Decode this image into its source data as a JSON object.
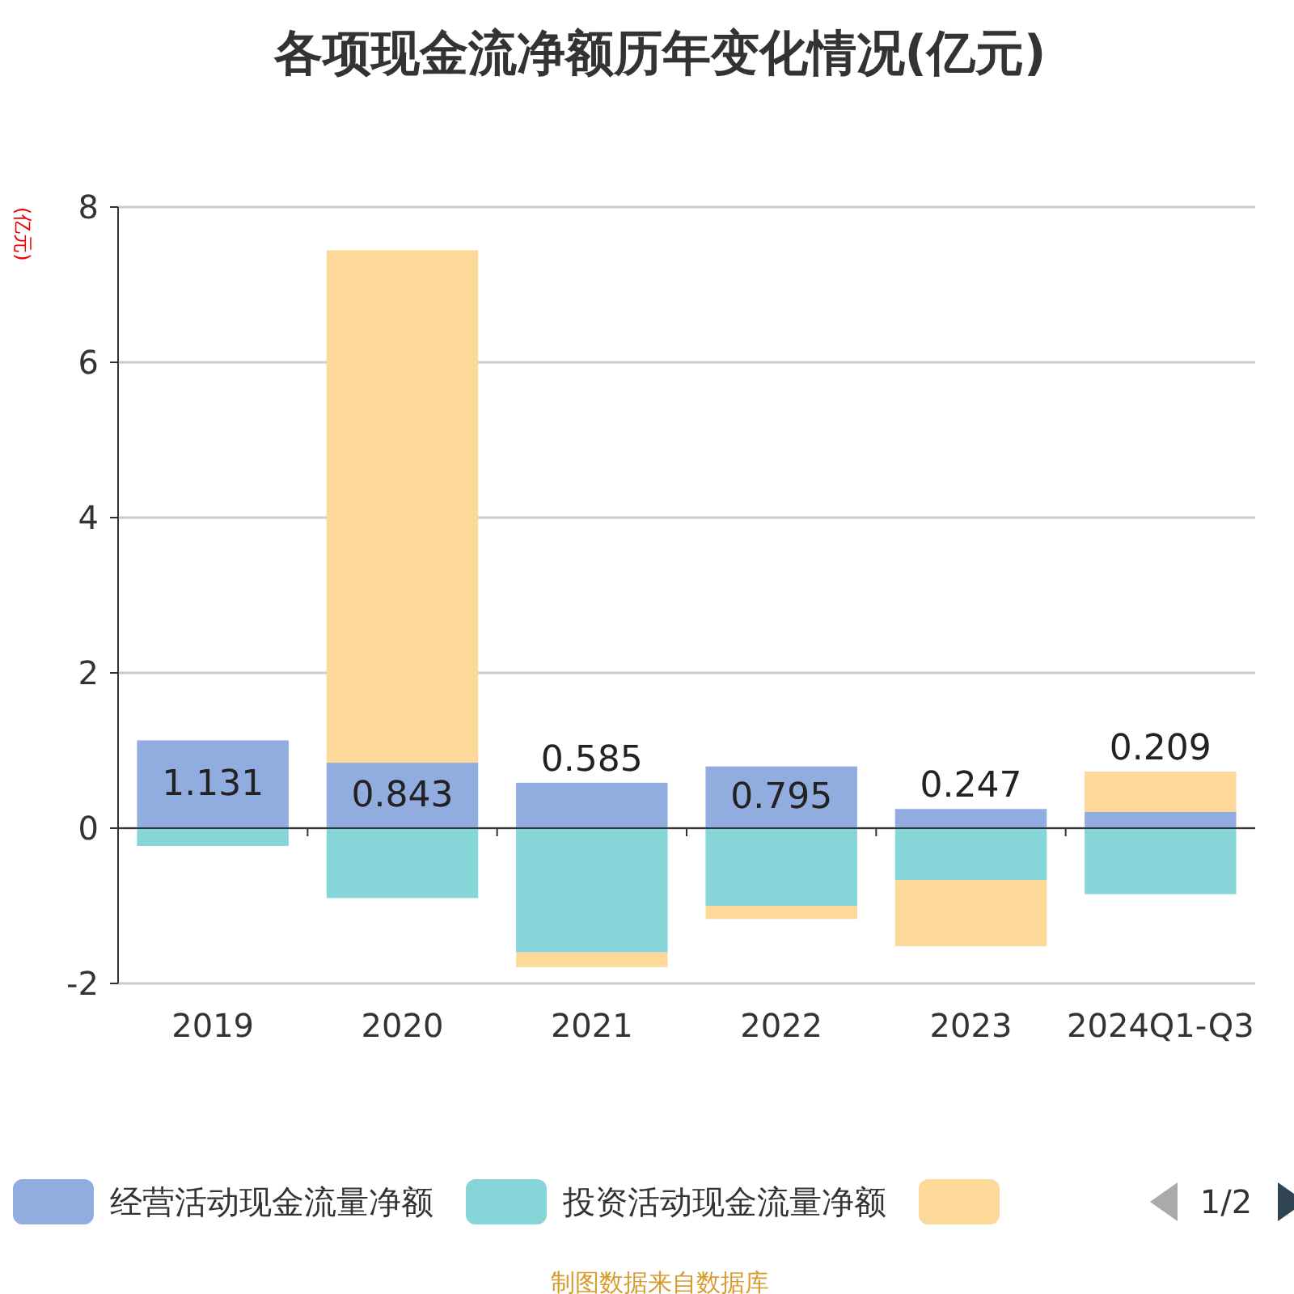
{
  "chart_data": {
    "type": "bar",
    "title": "各项现金流净额历年变化情况(亿元)",
    "ylabel": "(亿元)",
    "categories": [
      "2019",
      "2020",
      "2021",
      "2022",
      "2023",
      "2024Q1-Q3"
    ],
    "series": [
      {
        "name": "经营活动现金流量净额",
        "color": "#91acdf",
        "values": [
          1.131,
          0.843,
          0.585,
          0.795,
          0.247,
          0.209
        ],
        "value_labels": [
          "1.131",
          "0.843",
          "0.585",
          "0.795",
          "0.247",
          "0.209"
        ]
      },
      {
        "name": "投资活动现金流量净额",
        "color": "#86d5d8",
        "values": [
          -0.23,
          -0.9,
          -1.6,
          -1.0,
          -0.67,
          -0.85
        ]
      },
      {
        "color": "#fcd999",
        "values": [
          0,
          6.6,
          -0.19,
          -0.17,
          -0.85,
          0.52
        ]
      }
    ],
    "stacked": true,
    "ylim": [
      -2,
      8
    ],
    "yticks": [
      -2,
      0,
      2,
      4,
      6,
      8
    ],
    "grid": "y",
    "legend": "bottom",
    "annotations": [
      "1/2",
      "制图数据来自数据库"
    ]
  }
}
